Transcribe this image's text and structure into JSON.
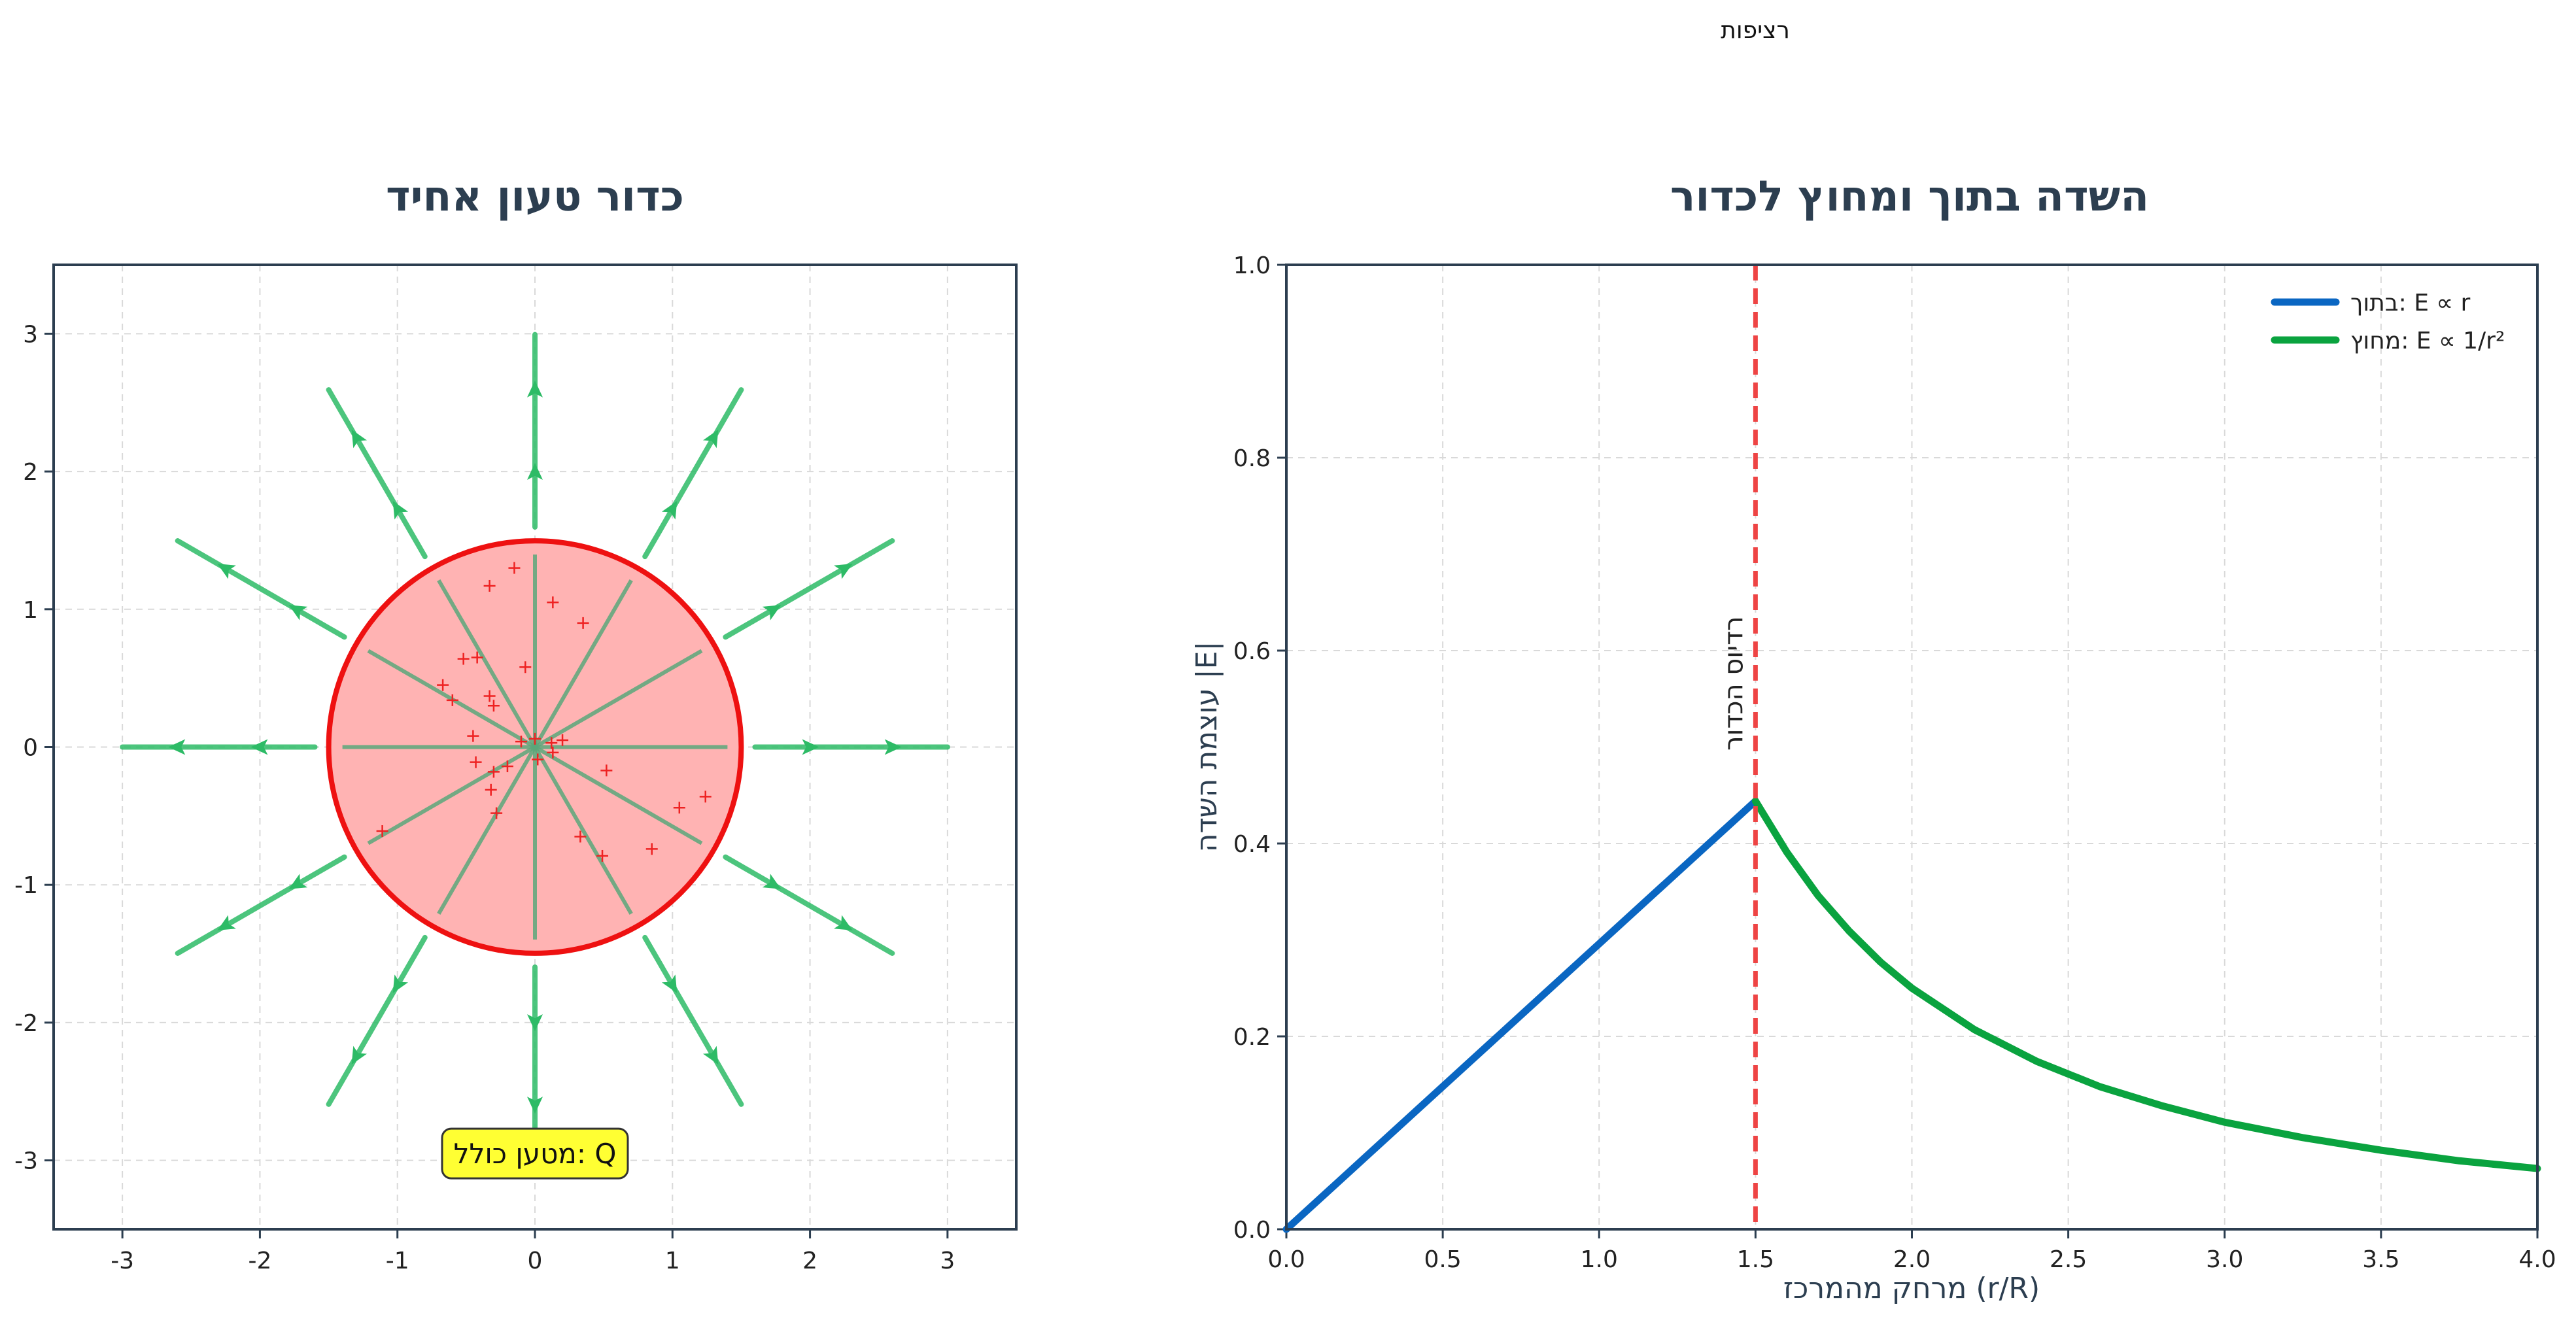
{
  "figure": {
    "suptitle": "רציפות"
  },
  "chart_data": [
    {
      "type": "diagram",
      "title": "כדור טעון אחיד",
      "xlim": [
        -3.5,
        3.5
      ],
      "ylim": [
        -3.5,
        3.5
      ],
      "xticks": [
        -3,
        -2,
        -1,
        0,
        1,
        2,
        3
      ],
      "yticks": [
        -3,
        -2,
        -1,
        0,
        1,
        2,
        3
      ],
      "xtick_labels": [
        "-3",
        "-2",
        "-1",
        "0",
        "1",
        "2",
        "3"
      ],
      "ytick_labels": [
        "-3",
        "-2",
        "-1",
        "0",
        "1",
        "2",
        "3"
      ],
      "grid": true,
      "sphere": {
        "center": [
          0,
          0
        ],
        "radius": 1.5,
        "fill": "#ffb3b3",
        "edge": "#ee1111"
      },
      "inner_lines": {
        "count": 6,
        "length": 1.4,
        "color": "#5aa77a"
      },
      "field_lines": {
        "count": 12,
        "r_start": 1.6,
        "r_end": 3.0,
        "arrow_positions": [
          2.0,
          2.6
        ],
        "color": "#2dbb66"
      },
      "charges": [
        [
          -0.33,
          1.17
        ],
        [
          -0.15,
          1.3
        ],
        [
          0.13,
          1.05
        ],
        [
          0.35,
          0.9
        ],
        [
          -0.52,
          0.64
        ],
        [
          -0.42,
          0.65
        ],
        [
          -0.07,
          0.58
        ],
        [
          -0.67,
          0.45
        ],
        [
          -0.6,
          0.34
        ],
        [
          -0.33,
          0.37
        ],
        [
          -0.3,
          0.3
        ],
        [
          -0.45,
          0.08
        ],
        [
          -0.1,
          0.04
        ],
        [
          0.0,
          0.06
        ],
        [
          0.12,
          0.03
        ],
        [
          0.2,
          0.05
        ],
        [
          0.13,
          -0.04
        ],
        [
          0.02,
          -0.09
        ],
        [
          -0.43,
          -0.11
        ],
        [
          -0.2,
          -0.14
        ],
        [
          -0.3,
          -0.18
        ],
        [
          0.52,
          -0.17
        ],
        [
          -0.32,
          -0.31
        ],
        [
          1.24,
          -0.36
        ],
        [
          1.05,
          -0.44
        ],
        [
          -0.28,
          -0.48
        ],
        [
          -1.11,
          -0.61
        ],
        [
          0.33,
          -0.65
        ],
        [
          0.49,
          -0.79
        ],
        [
          0.85,
          -0.74
        ]
      ],
      "charge_color": "#ee2222",
      "annotation": {
        "text": "מטען כולל: Q",
        "x": 0,
        "y": -2.95,
        "background": "#ffff33"
      }
    },
    {
      "type": "line",
      "title": "השדה בתוך ומחוץ לכדור",
      "xlabel": "מרחק מהמרכז (r/R)",
      "ylabel": "עוצמת השדה |E|",
      "xlim": [
        0,
        4.0
      ],
      "ylim": [
        0,
        1.0
      ],
      "xticks": [
        0,
        0.5,
        1.0,
        1.5,
        2.0,
        2.5,
        3.0,
        3.5,
        4.0
      ],
      "yticks": [
        0,
        0.2,
        0.4,
        0.6,
        0.8,
        1.0
      ],
      "xtick_labels": [
        "0.0",
        "0.5",
        "1.0",
        "1.5",
        "2.0",
        "2.5",
        "3.0",
        "3.5",
        "4.0"
      ],
      "ytick_labels": [
        "0.0",
        "0.2",
        "0.4",
        "0.6",
        "0.8",
        "1.0"
      ],
      "grid": true,
      "series": [
        {
          "name": "בתוך: E ∝ r",
          "color": "#0a66c2",
          "x": [
            0,
            0.25,
            0.5,
            0.75,
            1.0,
            1.25,
            1.5
          ],
          "y": [
            0,
            0.074,
            0.148,
            0.222,
            0.296,
            0.37,
            0.444
          ]
        },
        {
          "name": "מחוץ: E ∝ 1/r²",
          "color": "#0aa33f",
          "x": [
            1.5,
            1.6,
            1.7,
            1.8,
            1.9,
            2.0,
            2.2,
            2.4,
            2.6,
            2.8,
            3.0,
            3.25,
            3.5,
            3.75,
            4.0
          ],
          "y": [
            0.444,
            0.391,
            0.346,
            0.309,
            0.277,
            0.25,
            0.207,
            0.174,
            0.148,
            0.128,
            0.111,
            0.095,
            0.082,
            0.071,
            0.063
          ]
        }
      ],
      "vline": {
        "x": 1.5,
        "label": "רדיוס הכדור",
        "color": "#ee4444"
      },
      "legend": {
        "position": "top-right"
      }
    }
  ]
}
